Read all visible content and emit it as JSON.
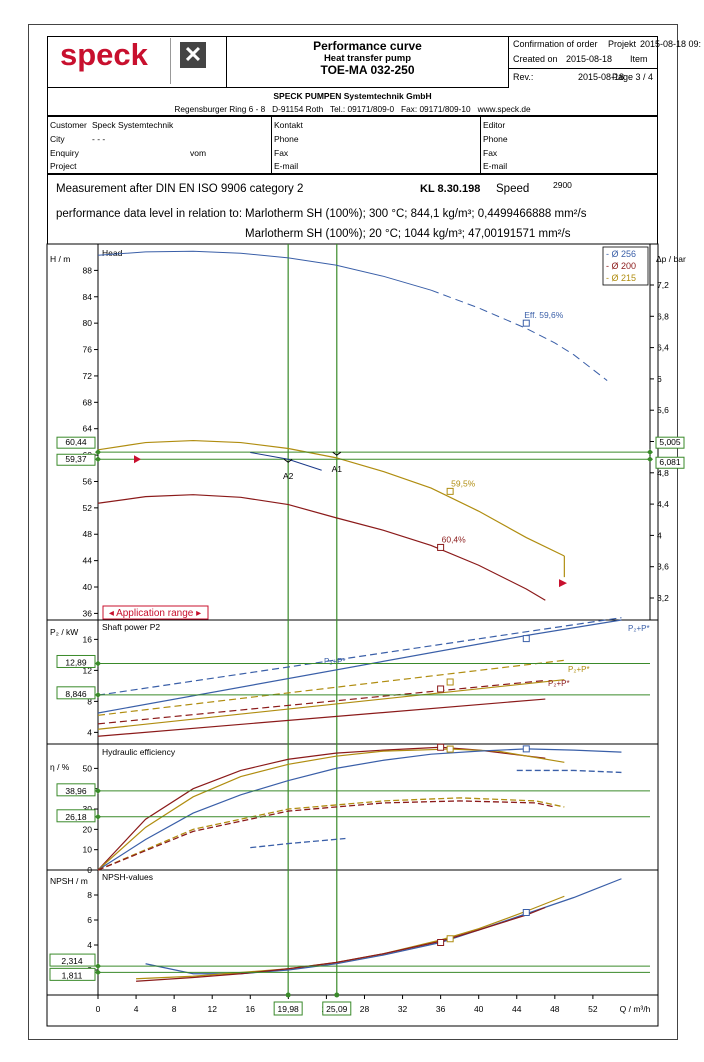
{
  "header": {
    "logo_text": "speck",
    "logo_icon": "x-box-icon",
    "doc_title": "Performance curve",
    "pump_type": "Heat transfer pump",
    "model": "TOE-MA 032-250",
    "confirmation_label": "Confirmation of order",
    "projekt_label": "Projekt",
    "projekt_value": "2015-08-18 09:",
    "created_label": "Created on",
    "created_value": "2015-08-18",
    "item_label": "Item",
    "rev_label": "Rev.:",
    "rev_value": "2015-08-18",
    "page_label": "Page 3 / 4",
    "company": "SPECK PUMPEN Systemtechnik GmbH",
    "address": "Regensburger Ring 6 - 8   D-91154 Roth   Tel.: 09171/809-0   Fax: 09171/809-10   www.speck.de"
  },
  "info": {
    "customer_label": "Customer",
    "customer_value": "Speck Systemtechnik",
    "city_label": "City",
    "city_value": "- - -",
    "enquiry_label": "Enquiry",
    "vom_label": "vom",
    "project_label": "Project",
    "kontakt_label": "Kontakt",
    "phone_label": "Phone",
    "fax_label": "Fax",
    "email_label": "E-mail",
    "editor_label": "Editor",
    "phone2_label": "Phone",
    "fax2_label": "Fax",
    "email2_label": "E-mail"
  },
  "measurement": {
    "text": "Measurement after DIN EN ISO 9906 category 2",
    "kl": "KL 8.30.198",
    "speed_label": "Speed",
    "speed_value": "2900",
    "perf_label": "performance data level in relation to:",
    "fluid1": "Marlotherm SH (100%); 300 °C; 844,1 kg/m³; 0,4499466888 mm²/s",
    "fluid2": "Marlotherm SH (100%); 20 °C; 1044 kg/m³; 47,00191571 mm²/s"
  },
  "colors": {
    "blue": "#3a5fa8",
    "red": "#8b1a1a",
    "gold": "#b08d10",
    "green": "#3a8a2a",
    "black": "#000000"
  },
  "chart_data": [
    {
      "type": "line",
      "title": "Head",
      "ylabel": "H / m",
      "y2label": "Δp / bar",
      "xlim": [
        0,
        58
      ],
      "ylim": [
        35,
        92
      ],
      "yticks": [
        36,
        40,
        44,
        48,
        52,
        56,
        60,
        64,
        68,
        72,
        76,
        80,
        84,
        88
      ],
      "y2ticks": [
        "3,2",
        "3,6",
        "4",
        "4,4",
        "4,8",
        "5,2",
        "5,6",
        "6",
        "6,4",
        "6,8",
        "7,2"
      ],
      "legend": [
        "- Ø 256",
        "- Ø 200",
        "- Ø 215"
      ],
      "series": [
        {
          "name": "Ø 256",
          "color": "blue",
          "x": [
            0,
            5,
            10,
            15,
            20,
            25,
            30,
            35,
            40,
            45,
            48,
            50,
            53.5
          ],
          "y": [
            90.3,
            90.8,
            90.9,
            90.6,
            89.9,
            88.8,
            87.1,
            85,
            82.3,
            79.2,
            77,
            75.2,
            71.3
          ],
          "dash_from": 36
        },
        {
          "name": "Ø 200",
          "color": "red",
          "x": [
            0,
            5,
            10,
            15,
            20,
            25,
            30,
            35,
            40,
            45,
            47
          ],
          "y": [
            52.7,
            53.7,
            54,
            53.6,
            52.5,
            50.5,
            48.6,
            46.3,
            43.3,
            39.7,
            38
          ]
        },
        {
          "name": "Ø 215",
          "color": "gold",
          "x": [
            0,
            5,
            10,
            15,
            20,
            25,
            30,
            35,
            40,
            45,
            49
          ],
          "y": [
            60.8,
            61.9,
            62.2,
            61.9,
            61,
            59.6,
            57.5,
            55,
            51.5,
            47.5,
            44.7
          ]
        }
      ],
      "markers": [
        {
          "x": 45,
          "y": 80,
          "label": "Eff.  59,6%",
          "color": "blue"
        },
        {
          "x": 37,
          "y": 54.5,
          "label": "59,5%",
          "color": "gold"
        },
        {
          "x": 36,
          "y": 46,
          "label": "60,4%",
          "color": "red"
        }
      ],
      "op_points": [
        {
          "label": "A2",
          "x": 19.98,
          "y": 59.37
        },
        {
          "label": "A1",
          "x": 25.09,
          "y": 60.44
        }
      ],
      "h_values": [
        "60,44",
        "59,37"
      ],
      "dp_values": [
        "5,005",
        "6,081"
      ],
      "app_range_label": "◂ Application range ▸"
    },
    {
      "type": "line",
      "title": "Shaft power P2",
      "ylabel": "P₂ / kW",
      "ylim": [
        2.5,
        18.5
      ],
      "yticks": [
        4,
        8,
        12,
        16
      ],
      "series": [
        {
          "name": "Ø 256 P2",
          "color": "blue",
          "x": [
            0,
            45,
            55
          ],
          "y": [
            6.5,
            16.5,
            18.5
          ],
          "dashed": false
        },
        {
          "name": "Ø 256 P2+P*",
          "color": "blue",
          "x": [
            0,
            55
          ],
          "y": [
            8.8,
            18.8
          ],
          "dashed": true
        },
        {
          "name": "Ø 215 P2",
          "color": "gold",
          "x": [
            0,
            49
          ],
          "y": [
            4.4,
            10.8
          ],
          "dashed": false
        },
        {
          "name": "Ø 215 P2+P*",
          "color": "gold",
          "x": [
            0,
            49
          ],
          "y": [
            6.2,
            13.3
          ],
          "dashed": true
        },
        {
          "name": "Ø 200 P2",
          "color": "red",
          "x": [
            0,
            47
          ],
          "y": [
            3.5,
            8.3
          ],
          "dashed": false
        },
        {
          "name": "Ø 200 P2+P*",
          "color": "red",
          "x": [
            0,
            47
          ],
          "y": [
            5.1,
            10.7
          ],
          "dashed": true
        }
      ],
      "curve_labels": [
        "P₂+P*",
        "P₂+P*",
        "P₂+P*",
        "P₂+P*"
      ],
      "p_values": [
        "12,89",
        "8,846"
      ]
    },
    {
      "type": "line",
      "title": "Hydraulic efficiency",
      "ylabel": "η / %",
      "ylim": [
        0,
        62
      ],
      "yticks": [
        0,
        10,
        20,
        30,
        40,
        50
      ],
      "series": [
        {
          "name": "Ø 200 η",
          "color": "red",
          "x": [
            0,
            5,
            10,
            15,
            20,
            25,
            30,
            36,
            40,
            47
          ],
          "y": [
            0,
            25,
            40,
            49,
            54.5,
            57.5,
            59,
            60.4,
            59,
            55
          ]
        },
        {
          "name": "Ø 215 η",
          "color": "gold",
          "x": [
            0,
            5,
            10,
            15,
            20,
            25,
            30,
            37,
            42,
            49
          ],
          "y": [
            0,
            21,
            36,
            46,
            52,
            56,
            58.5,
            59.5,
            58.5,
            53
          ]
        },
        {
          "name": "Ø 256 η",
          "color": "blue",
          "x": [
            0,
            5,
            10,
            15,
            20,
            25,
            30,
            35,
            40,
            45,
            50,
            55
          ],
          "y": [
            0,
            15,
            28,
            37,
            44,
            50,
            54,
            57,
            58.5,
            59.6,
            59,
            58
          ]
        }
      ],
      "eta_values": [
        "38,96",
        "26,18"
      ]
    },
    {
      "type": "line",
      "title": "NPSH-values",
      "ylabel": "NPSH / m",
      "ylim": [
        0,
        10
      ],
      "yticks": [
        2,
        4,
        6,
        8
      ],
      "xticks": [
        0,
        4,
        8,
        12,
        16,
        20,
        24,
        28,
        32,
        36,
        40,
        44,
        48,
        52
      ],
      "xlabel": "Q / m³/h",
      "series": [
        {
          "name": "Ø 256 NPSH",
          "color": "blue",
          "x": [
            5,
            10,
            15,
            20,
            25,
            30,
            36,
            40,
            45,
            50,
            55
          ],
          "y": [
            2.5,
            1.7,
            1.7,
            2,
            2.5,
            3.2,
            4.2,
            5.2,
            6.5,
            7.8,
            9.3
          ]
        },
        {
          "name": "Ø 215 NPSH",
          "color": "gold",
          "x": [
            4,
            10,
            15,
            20,
            25,
            30,
            36,
            40,
            45,
            49
          ],
          "y": [
            1.3,
            1.5,
            1.8,
            2.1,
            2.6,
            3.3,
            4.4,
            5.3,
            6.7,
            7.9
          ]
        },
        {
          "name": "Ø 200 NPSH",
          "color": "red",
          "x": [
            4,
            10,
            15,
            20,
            25,
            30,
            36,
            40,
            45,
            47
          ],
          "y": [
            1.1,
            1.4,
            1.7,
            2.1,
            2.6,
            3.3,
            4.3,
            5.2,
            6.4,
            7
          ]
        }
      ],
      "npsh_values": [
        "2,314",
        "1,811"
      ],
      "q_values": [
        "19,98",
        "25,09"
      ]
    }
  ]
}
